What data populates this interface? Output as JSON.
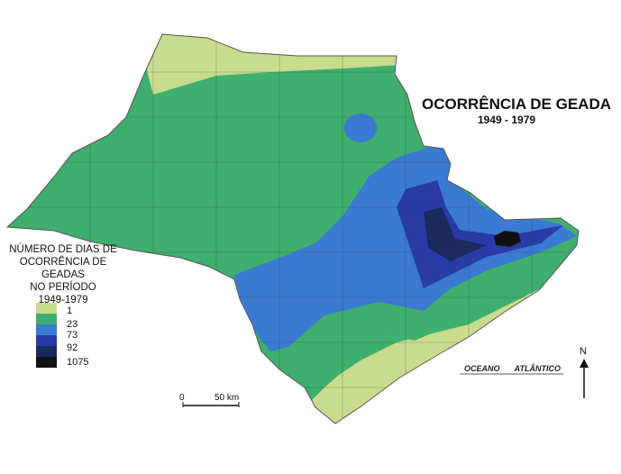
{
  "map": {
    "title": "OCORRÊNCIA DE GEADA",
    "period": "1949 - 1979",
    "ocean_label": "OCEANO ATLÂNTICO",
    "north_label": "N",
    "scale": {
      "start": "0",
      "end": "50 km"
    }
  },
  "legend": {
    "title_lines": [
      "NÚMERO DE DIAS DE",
      "OCORRÊNCIA DE GEADAS",
      "NO PERÍODO",
      "1949-1979"
    ],
    "classes": [
      {
        "label": "1",
        "color": "#c9dc8e"
      },
      {
        "label": "23",
        "color": "#3fae6e"
      },
      {
        "label": "73",
        "color": "#3a7ad2"
      },
      {
        "label": "92",
        "color": "#2a3aa6"
      },
      {
        "label": "1075",
        "color": "#1a2a5c"
      },
      {
        "label": "",
        "color": "#111111"
      }
    ]
  }
}
